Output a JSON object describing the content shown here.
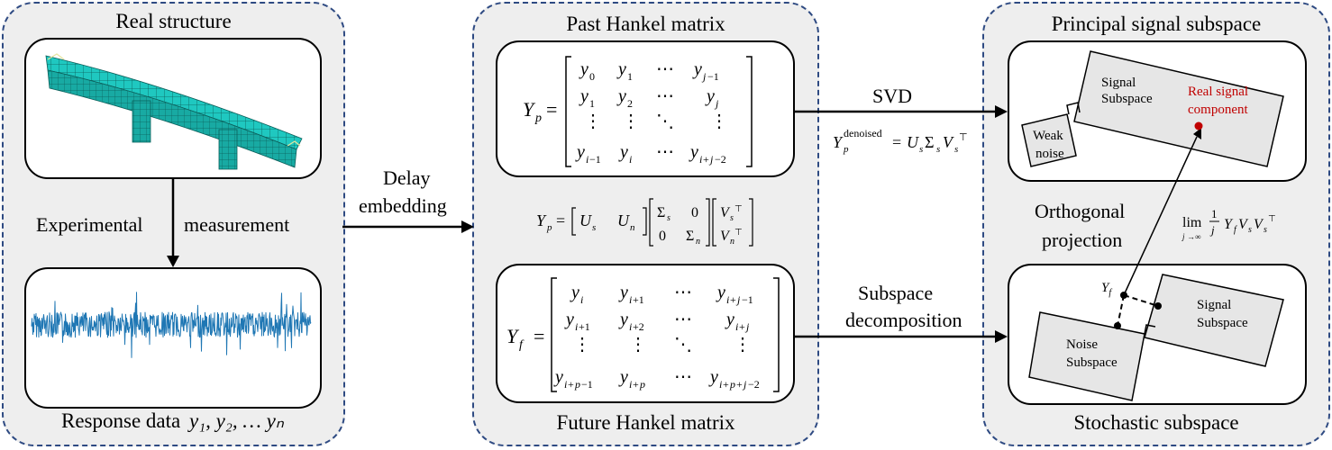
{
  "panels": {
    "left": {
      "title": "Real structure",
      "footer_prefix": "Response data",
      "footer_math": "y₁, y₂, … yₙ"
    },
    "middle": {
      "title": "Past Hankel matrix",
      "footer": "Future Hankel matrix"
    },
    "right": {
      "title": "Principal signal subspace",
      "footer": "Stochastic subspace"
    }
  },
  "labels": {
    "experimental": "Experimental",
    "measurement": "measurement",
    "delay_line1": "Delay",
    "delay_line2": "embedding",
    "svd": "SVD",
    "subspace_line1": "Subspace",
    "subspace_line2": "decomposition",
    "orth_line1": "Orthogonal",
    "orth_line2": "projection",
    "signal_subspace_line1": "Signal",
    "signal_subspace_line2": "Subspace",
    "real_signal_line1": "Real signal",
    "real_signal_line2": "component",
    "weak_line1": "Weak",
    "weak_line2": "noise",
    "noise_subspace_line1": "Noise",
    "noise_subspace_line2": "Subspace",
    "lower_signal_line1": "Signal",
    "lower_signal_line2": "Subspace",
    "yf_point": "Y",
    "yf_point_sub": "f"
  },
  "colors": {
    "panel_border": "#2e4a82",
    "panel_fill": "#eeeeee",
    "highlight": "#c00000",
    "mesh": "#1fc8c0",
    "signal": "#1f77b4"
  }
}
